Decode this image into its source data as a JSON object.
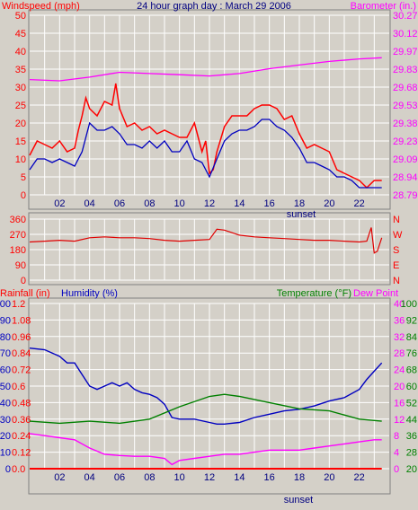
{
  "title": "24 hour graph day : March 29 2006",
  "colors": {
    "background": "#d4d0c8",
    "plot": "#d4d0c8",
    "grid": "#ffffff",
    "wind_speed": "#ff0000",
    "wind_gust_avg": "#0000c0",
    "barometer": "#ff00ff",
    "direction": "#e00000",
    "humidity": "#0000c0",
    "temperature": "#008000",
    "dew_point": "#ff00ff",
    "rainfall": "#ff0000",
    "axis_text_left_top": "#ff0000",
    "axis_text_right_top": "#ff00ff",
    "axis_text_humidity": "#0000c0",
    "axis_text_temp": "#008000"
  },
  "panels": {
    "wind": {
      "left_label": "Windspeed (mph)",
      "right_label": "Barometer (in.)",
      "footer": "sunset"
    },
    "direction": {},
    "climate": {
      "rain_label": "Rainfall (in)",
      "humidity_label": "Humidity (%)",
      "temperature_label": "Temperature (°F)",
      "dewpoint_label": "Dew Point",
      "footer": "sunset"
    }
  },
  "chart_data": [
    {
      "type": "line",
      "title": "24 hour graph day : March 29 2006",
      "x_ticks": [
        "02",
        "04",
        "06",
        "08",
        "10",
        "12",
        "14",
        "16",
        "18",
        "20",
        "22"
      ],
      "xlim_hours": [
        0,
        24
      ],
      "y_left": {
        "label": "Windspeed (mph)",
        "ticks": [
          "50",
          "45",
          "40",
          "35",
          "30",
          "25",
          "20",
          "15",
          "10",
          "5",
          "0"
        ],
        "ylim": [
          0,
          50
        ]
      },
      "y_right": {
        "label": "Barometer (in.)",
        "ticks": [
          "30.27",
          "30.12",
          "29.97",
          "29.83",
          "29.68",
          "29.53",
          "29.38",
          "29.23",
          "29.09",
          "28.94",
          "28.79"
        ],
        "ylim": [
          28.79,
          30.27
        ]
      },
      "series": [
        {
          "axis": "left",
          "color": "#ff0000",
          "x": [
            0,
            0.5,
            1,
            1.5,
            2,
            2.5,
            3,
            3.25,
            3.5,
            3.75,
            4,
            4.5,
            5,
            5.5,
            5.75,
            6,
            6.5,
            7,
            7.5,
            8,
            8.5,
            9,
            9.5,
            10,
            10.5,
            11,
            11.5,
            11.75,
            12,
            12.25,
            12.5,
            13,
            13.5,
            14,
            14.5,
            15,
            15.5,
            16,
            16.5,
            17,
            17.5,
            18,
            18.5,
            19,
            19.5,
            20,
            20.5,
            21,
            21.5,
            22,
            22.5,
            23,
            23.5
          ],
          "values": [
            11,
            15,
            14,
            13,
            15,
            12,
            13,
            18,
            22,
            27,
            24,
            22,
            26,
            25,
            31,
            24,
            19,
            20,
            18,
            19,
            17,
            18,
            17,
            16,
            16,
            20,
            12,
            15,
            6,
            7,
            12,
            19,
            22,
            22,
            22,
            24,
            25,
            25,
            24,
            21,
            22,
            17,
            13,
            14,
            13,
            12,
            7,
            6,
            5,
            4,
            2,
            4,
            4
          ]
        },
        {
          "axis": "left",
          "color": "#0000c0",
          "x": [
            0,
            0.5,
            1,
            1.5,
            2,
            2.5,
            3,
            3.5,
            4,
            4.5,
            5,
            5.5,
            6,
            6.5,
            7,
            7.5,
            8,
            8.5,
            9,
            9.5,
            10,
            10.5,
            11,
            11.5,
            12,
            12.5,
            13,
            13.5,
            14,
            14.5,
            15,
            15.5,
            16,
            16.5,
            17,
            17.5,
            18,
            18.5,
            19,
            19.5,
            20,
            20.5,
            21,
            21.5,
            22,
            22.5,
            23,
            23.5
          ],
          "values": [
            7,
            10,
            10,
            9,
            10,
            9,
            8,
            12,
            20,
            18,
            18,
            19,
            17,
            14,
            14,
            13,
            15,
            13,
            15,
            12,
            12,
            15,
            10,
            9,
            5,
            10,
            15,
            17,
            18,
            18,
            19,
            21,
            21,
            19,
            18,
            16,
            13,
            9,
            9,
            8,
            7,
            5,
            5,
            4,
            2,
            2,
            2,
            2
          ]
        },
        {
          "axis": "right",
          "color": "#ff00ff",
          "x": [
            0,
            2,
            4,
            6,
            8,
            10,
            12,
            14,
            16,
            18,
            20,
            22,
            23.5
          ],
          "values": [
            29.74,
            29.73,
            29.76,
            29.8,
            29.79,
            29.78,
            29.77,
            29.79,
            29.83,
            29.86,
            29.89,
            29.91,
            29.92
          ]
        }
      ]
    },
    {
      "type": "scatter",
      "y_left": {
        "ticks": [
          "360",
          "270",
          "180",
          "90",
          "0"
        ],
        "ylim": [
          0,
          360
        ]
      },
      "y_right": {
        "ticks": [
          "N",
          "W",
          "S",
          "E",
          "N"
        ]
      },
      "series": [
        {
          "color": "#e00000",
          "x": [
            0,
            1,
            2,
            3,
            4,
            5,
            6,
            7,
            8,
            9,
            10,
            11,
            12,
            12.5,
            13,
            13.5,
            14,
            15,
            16,
            17,
            18,
            19,
            20,
            21,
            22,
            22.5,
            22.8,
            23,
            23.2,
            23.5
          ],
          "values": [
            225,
            230,
            235,
            230,
            250,
            255,
            250,
            250,
            245,
            235,
            230,
            235,
            240,
            300,
            295,
            280,
            265,
            255,
            250,
            245,
            240,
            235,
            235,
            230,
            225,
            230,
            310,
            160,
            170,
            250
          ]
        }
      ]
    },
    {
      "type": "line",
      "y_rain": {
        "label": "Rainfall (in)",
        "ticks": [
          "1.2",
          "1.08",
          "0.96",
          "0.84",
          "0.72",
          "0.6",
          "0.48",
          "0.36",
          "0.24",
          "0.12",
          "0.0"
        ],
        "ylim": [
          0,
          1.2
        ]
      },
      "y_humidity": {
        "label": "Humidity (%)",
        "ticks": [
          "100",
          "90",
          "80",
          "70",
          "60",
          "50",
          "40",
          "30",
          "20",
          "10",
          "0"
        ],
        "ylim": [
          0,
          100
        ]
      },
      "y_dewpoint": {
        "label": "Dew Point",
        "ticks": [
          "40",
          "36",
          "32",
          "28",
          "24",
          "20",
          "16",
          "12",
          "8",
          "4",
          "0"
        ],
        "ylim": [
          0,
          40
        ]
      },
      "y_temperature": {
        "label": "Temperature (°F)",
        "ticks": [
          "100",
          "92",
          "84",
          "76",
          "68",
          "60",
          "52",
          "44",
          "36",
          "28",
          "20"
        ],
        "ylim": [
          20,
          100
        ]
      },
      "series": [
        {
          "axis": "humidity",
          "color": "#0000c0",
          "x": [
            0,
            1,
            2,
            2.5,
            3,
            3.5,
            4,
            4.5,
            5,
            5.5,
            6,
            6.5,
            7,
            7.5,
            8,
            8.5,
            9,
            9.5,
            10,
            11,
            12,
            12.5,
            13,
            14,
            15,
            16,
            17,
            18,
            19,
            20,
            21,
            22,
            22.5,
            23,
            23.5
          ],
          "values": [
            73,
            72,
            68,
            64,
            64,
            57,
            50,
            48,
            50,
            52,
            50,
            52,
            48,
            46,
            45,
            43,
            39,
            31,
            30,
            30,
            28,
            27,
            27,
            28,
            31,
            33,
            35,
            36,
            38,
            41,
            43,
            48,
            54,
            59,
            64
          ]
        },
        {
          "axis": "temperature",
          "color": "#008000",
          "x": [
            0,
            2,
            4,
            6,
            8,
            10,
            12,
            13,
            14,
            16,
            18,
            20,
            22,
            23.5
          ],
          "values": [
            43,
            42,
            43,
            42,
            44,
            50,
            55,
            56,
            55,
            52,
            49,
            48,
            44,
            43
          ]
        },
        {
          "axis": "dewpoint",
          "color": "#ff00ff",
          "x": [
            0,
            1,
            2,
            3,
            4,
            5,
            6,
            7,
            8,
            9,
            9.5,
            10,
            11,
            12,
            13,
            14,
            15,
            16,
            17,
            18,
            19,
            20,
            21,
            22,
            23,
            23.5
          ],
          "values": [
            8.5,
            8,
            7.5,
            7,
            5,
            3.5,
            3.2,
            3,
            3,
            2.5,
            1,
            2,
            2.5,
            3,
            3.5,
            3.5,
            4,
            4.5,
            4.5,
            4.5,
            5,
            5.5,
            6,
            6.5,
            7,
            7
          ]
        },
        {
          "axis": "rain",
          "color": "#ff0000",
          "x": [
            0,
            23.5
          ],
          "values": [
            0.0,
            0.0
          ]
        }
      ]
    }
  ]
}
